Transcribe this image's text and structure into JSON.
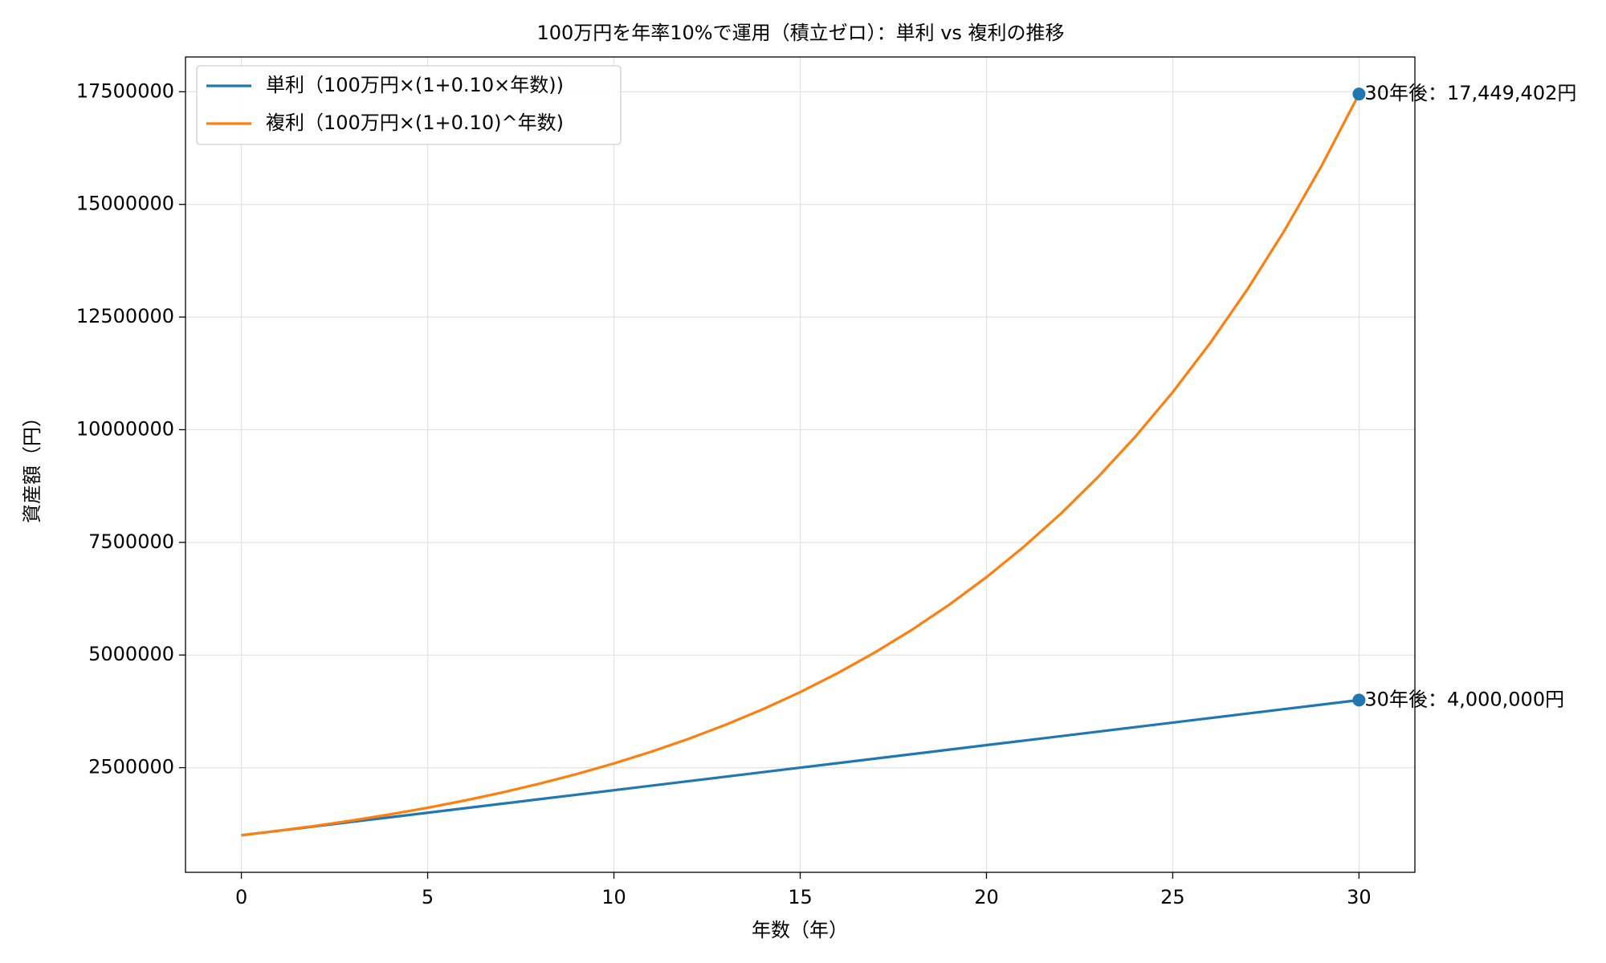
{
  "chart_data": {
    "type": "line",
    "title": "100万円を年率10%で運用（積立ゼロ）：単利 vs 複利の推移",
    "xlabel": "年数（年）",
    "ylabel": "資産額（円）",
    "x": [
      0,
      1,
      2,
      3,
      4,
      5,
      6,
      7,
      8,
      9,
      10,
      11,
      12,
      13,
      14,
      15,
      16,
      17,
      18,
      19,
      20,
      21,
      22,
      23,
      24,
      25,
      26,
      27,
      28,
      29,
      30
    ],
    "series": [
      {
        "name": "単利（100万円×(1+0.10×年数))",
        "color": "#1f77b4",
        "values": [
          1000000,
          1100000,
          1200000,
          1300000,
          1400000,
          1500000,
          1600000,
          1700000,
          1800000,
          1900000,
          2000000,
          2100000,
          2200000,
          2300000,
          2400000,
          2500000,
          2600000,
          2700000,
          2800000,
          2900000,
          3000000,
          3100000,
          3200000,
          3300000,
          3400000,
          3500000,
          3600000,
          3700000,
          3800000,
          3900000,
          4000000
        ]
      },
      {
        "name": "複利（100万円×(1+0.10)^年数)",
        "color": "#ff7f0e",
        "values": [
          1000000,
          1100000,
          1210000,
          1331000,
          1464100,
          1610510,
          1771561,
          1948717.1,
          2143588.81,
          2357947.691,
          2593742.46,
          2853116.706,
          3138428.377,
          3452271.214,
          3797498.336,
          4177248.169,
          4594972.986,
          5054470.285,
          5559917.313,
          6115909.045,
          6727499.949,
          7400249.944,
          8140274.939,
          8954302.433,
          9849732.676,
          10834705.94,
          11918176.54,
          13109994.19,
          14420993.61,
          15863092.97,
          17449402.27
        ]
      }
    ],
    "annotations": [
      {
        "text": "30年後：17,449,402円",
        "x": 30,
        "y": 17449402.27,
        "color": "#1f77b4"
      },
      {
        "text": "30年後：4,000,000円",
        "x": 30,
        "y": 4000000,
        "color": "#1f77b4"
      }
    ],
    "xlim": [
      -1.5,
      31.5
    ],
    "ylim": [
      177530,
      18271872
    ],
    "xticks": [
      0,
      5,
      10,
      15,
      20,
      25,
      30
    ],
    "yticks": [
      2500000,
      5000000,
      7500000,
      10000000,
      12500000,
      15000000,
      17500000
    ],
    "grid": true,
    "legend": "upper left"
  }
}
